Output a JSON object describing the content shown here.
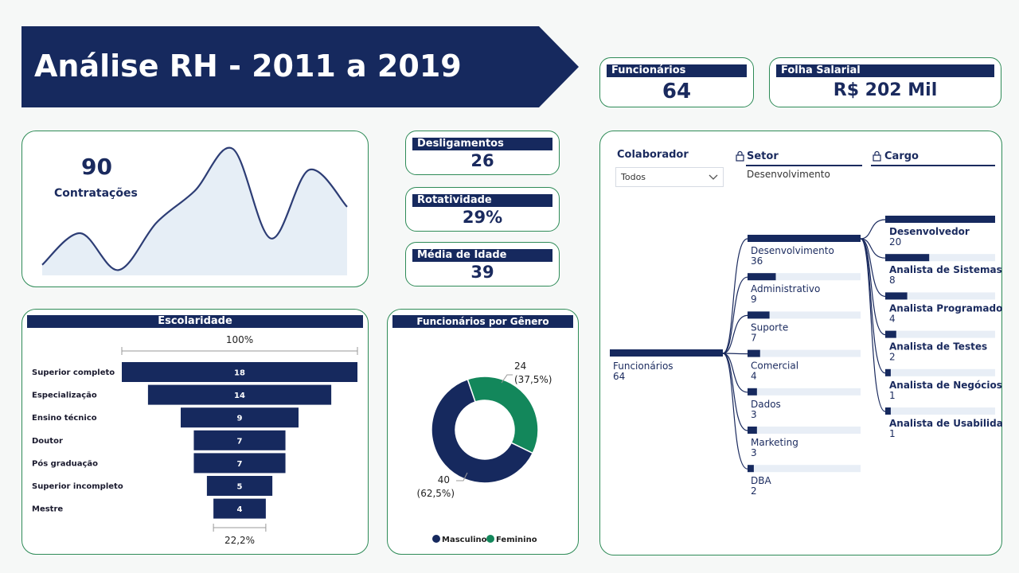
{
  "header": {
    "title": "Análise RH - 2011 a 2019"
  },
  "colors": {
    "navy": "#16295e",
    "green": "#13875b",
    "area": "#e6eef6",
    "track": "#e8eef6"
  },
  "kpis": {
    "funcionarios": {
      "label": "Funcionários",
      "value": "64"
    },
    "folha": {
      "label": "Folha Salarial",
      "value": "R$ 202 Mil"
    },
    "desligamentos": {
      "label": "Desligamentos",
      "value": "26"
    },
    "rotatividade": {
      "label": "Rotatividade",
      "value": "29%"
    },
    "idade": {
      "label": "Média de Idade",
      "value": "39"
    }
  },
  "hires": {
    "value": "90",
    "label": "Contratações"
  },
  "funnel": {
    "title": "Escolaridade",
    "top_pct": "100%",
    "bottom_pct": "22,2%"
  },
  "donut": {
    "title": "Funcionários por Gênero",
    "male_value": "40",
    "male_pct": "(62,5%)",
    "female_value": "24",
    "female_pct": "(37,5%)",
    "legend_male": "Masculino",
    "legend_female": "Feminino"
  },
  "tree": {
    "colaborador_label": "Colaborador",
    "colaborador_value": "Todos",
    "setor_label": "Setor",
    "setor_value": "Desenvolvimento",
    "cargo_label": "Cargo"
  },
  "chart_data": [
    {
      "type": "area",
      "x": [
        1,
        2,
        3,
        4,
        5,
        6,
        7,
        8,
        9
      ],
      "y": [
        2,
        8,
        1,
        10,
        16,
        24,
        7,
        20,
        13
      ]
    },
    {
      "type": "bar",
      "subtype": "funnel",
      "title": "Escolaridade",
      "categories": [
        "Superior completo",
        "Especialização",
        "Ensino técnico",
        "Doutor",
        "Pós graduação",
        "Superior incompleto",
        "Mestre"
      ],
      "values": [
        18,
        14,
        9,
        7,
        7,
        5,
        4
      ]
    },
    {
      "type": "pie",
      "subtype": "donut",
      "title": "Funcionários por Gênero",
      "categories": [
        "Masculino",
        "Feminino"
      ],
      "values": [
        40,
        24
      ],
      "colors": [
        "#16295e",
        "#13875b"
      ]
    },
    {
      "type": "bar",
      "subtype": "decomposition-tree",
      "root": {
        "label": "Funcionários",
        "value": 64
      },
      "level1": [
        {
          "label": "Desenvolvimento",
          "value": 36,
          "selected": true
        },
        {
          "label": "Administrativo",
          "value": 9
        },
        {
          "label": "Suporte",
          "value": 7
        },
        {
          "label": "Comercial",
          "value": 4
        },
        {
          "label": "Dados",
          "value": 3
        },
        {
          "label": "Marketing",
          "value": 3
        },
        {
          "label": "DBA",
          "value": 2
        }
      ],
      "level2": [
        {
          "label": "Desenvolvedor",
          "value": 20
        },
        {
          "label": "Analista de Sistemas",
          "value": 8
        },
        {
          "label": "Analista Programador",
          "value": 4
        },
        {
          "label": "Analista de Testes",
          "value": 2
        },
        {
          "label": "Analista de Negócios",
          "value": 1
        },
        {
          "label": "Analista de Usabilidade",
          "value": 1
        }
      ]
    }
  ]
}
